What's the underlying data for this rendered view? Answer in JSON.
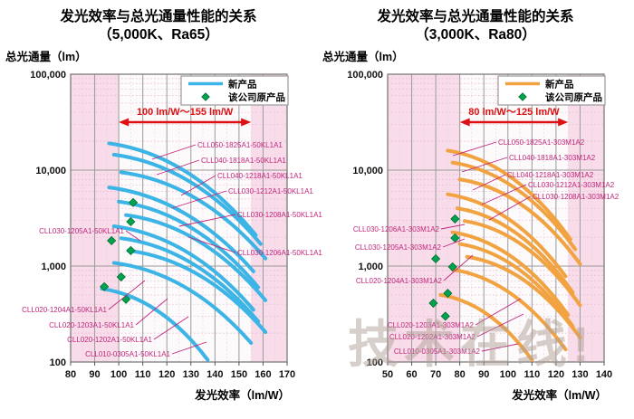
{
  "page": {
    "watermark": "技术在线!"
  },
  "colors": {
    "scatter": "#00a44f",
    "scatter_edge": "#04692e",
    "series_label": "#c0267c",
    "leader": "#c0267c",
    "arrow": "#dd1111",
    "plot_bg": "#f8dce9",
    "band_bg": "#fdfafb",
    "grid_major": "#9a9a9a",
    "grid_minor": "#e2b2ce",
    "grid_minor_v": "#eecadd",
    "border": "#7d7d7d",
    "legend_border": "#9a9a9a",
    "tick_text": "#111111"
  },
  "chart_data": [
    {
      "type": "line",
      "title_line1": "发光效率与总光通量性能的关系",
      "title_line2": "（5,000K、Ra65）",
      "y_axis_label": "总光通量（lm）",
      "x_axis_label": "发光效率（lm/W）",
      "legend": {
        "new_product": "新产品",
        "original_product": "该公司原产品",
        "position": "top-right"
      },
      "range_annotation": "100 lm/W～155 lm/W",
      "highlight_range": [
        100,
        155
      ],
      "x_min": 80,
      "x_max": 170,
      "x_ticks": [
        80,
        90,
        100,
        110,
        120,
        130,
        140,
        150,
        160,
        170
      ],
      "y_ticks": [
        "100,000",
        "10,000",
        "1,000",
        "100"
      ],
      "y_scale": "log",
      "y_min": 100,
      "y_max": 100000,
      "line_color": "#3cb4e5",
      "series": [
        {
          "label": "CLL050-1825A1-50KL1A1",
          "eff": [
            96,
            157
          ],
          "flux": [
            19000,
            2100
          ],
          "label_pos": [
            218,
            163
          ],
          "label_anchor": "start",
          "leader_to": [
            168,
            176
          ]
        },
        {
          "label": "CLL040-1818A1-50KL1A1",
          "eff": [
            98,
            159
          ],
          "flux": [
            14500,
            1700
          ],
          "label_pos": [
            222,
            180
          ],
          "label_anchor": "start",
          "leader_to": [
            173,
            193
          ]
        },
        {
          "label": "CLL040-1218A1-50KL1A1",
          "eff": [
            101,
            161
          ],
          "flux": [
            9500,
            1200
          ],
          "label_pos": [
            240,
            197
          ],
          "label_anchor": "start",
          "leader_to": [
            200,
            216
          ]
        },
        {
          "label": "CLL030-1212A1-50KL1A1",
          "eff": [
            96,
            156
          ],
          "flux": [
            6600,
            880
          ],
          "label_pos": [
            252,
            214
          ],
          "label_anchor": "start",
          "leader_to": [
            190,
            230
          ]
        },
        {
          "label": "CLL030-1208A1-50KL1A1",
          "eff": [
            100,
            158
          ],
          "flux": [
            4700,
            600
          ],
          "label_pos": [
            262,
            240
          ],
          "label_anchor": "start",
          "leader_to": [
            198,
            250
          ]
        },
        {
          "label": "CLL030-1206A1-50KL1A1",
          "eff": [
            103,
            161
          ],
          "flux": [
            3400,
            440
          ],
          "label_pos": [
            262,
            282
          ],
          "label_anchor": "start",
          "leader_to": [
            208,
            262
          ]
        },
        {
          "label": "CLL030-1205A1-50KL1A1",
          "eff": [
            98,
            156
          ],
          "flux": [
            2600,
            350
          ],
          "label_pos": [
            137,
            258
          ],
          "label_anchor": "end",
          "leader_to": [
            155,
            266
          ]
        },
        {
          "label": "CLL020-1204A1-50KL1A1",
          "eff": [
            101,
            158
          ],
          "flux": [
            1950,
            265
          ],
          "label_pos": [
            118,
            345
          ],
          "label_anchor": "end",
          "leader_to": [
            160,
            310
          ]
        },
        {
          "label": "CLL020-1203A1-50KL1A1",
          "eff": [
            104,
            161
          ],
          "flux": [
            1450,
            205
          ],
          "label_pos": [
            148,
            362
          ],
          "label_anchor": "end",
          "leader_to": [
            185,
            330
          ]
        },
        {
          "label": "CLL020-1202A1-50KL1A1",
          "eff": [
            98,
            155
          ],
          "flux": [
            1080,
            158
          ],
          "label_pos": [
            168,
            378
          ],
          "label_anchor": "end",
          "leader_to": [
            208,
            350
          ]
        },
        {
          "label": "CLL010-0305A1-50KL1A1",
          "eff": [
            93,
            137
          ],
          "flux": [
            580,
            105
          ],
          "label_pos": [
            188,
            394
          ],
          "label_anchor": "end",
          "leader_to": [
            228,
            378
          ]
        }
      ],
      "scatter": [
        [
          106,
          4600
        ],
        [
          105,
          2900
        ],
        [
          97,
          1840
        ],
        [
          105,
          1450
        ],
        [
          101,
          770
        ],
        [
          94,
          610
        ],
        [
          103,
          450
        ]
      ]
    },
    {
      "type": "line",
      "title_line1": "发光效率与总光通量性能的关系",
      "title_line2": "（3,000K、Ra80）",
      "y_axis_label": "总光通量（lm）",
      "x_axis_label": "发光效率（lm/W）",
      "legend": {
        "new_product": "新产品",
        "original_product": "该公司原产品",
        "position": "top-right"
      },
      "range_annotation": "80 lm/W～125 lm/W",
      "highlight_range": [
        80,
        125
      ],
      "x_min": 50,
      "x_max": 140,
      "x_ticks": [
        50,
        60,
        70,
        80,
        90,
        100,
        110,
        120,
        130,
        140
      ],
      "y_ticks": [
        "100,000",
        "10,000",
        "1,000",
        "100"
      ],
      "y_scale": "log",
      "y_min": 100,
      "y_max": 100000,
      "line_color": "#f2a341",
      "series": [
        {
          "label": "CLL050-1825A1-303M1A2",
          "eff": [
            75,
            126
          ],
          "flux": [
            16000,
            1900
          ],
          "label_pos": [
            200,
            160
          ],
          "label_anchor": "start",
          "leader_to": [
            150,
            172
          ]
        },
        {
          "label": "CLL040-1818A1-303M1A2",
          "eff": [
            77,
            128
          ],
          "flux": [
            12000,
            1500
          ],
          "label_pos": [
            212,
            177
          ],
          "label_anchor": "start",
          "leader_to": [
            160,
            190
          ]
        },
        {
          "label": "CLL040-1218A1-303M1A2",
          "eff": [
            80,
            130
          ],
          "flux": [
            8000,
            1050
          ],
          "label_pos": [
            210,
            196
          ],
          "label_anchor": "start",
          "leader_to": [
            172,
            210
          ]
        },
        {
          "label": "CLL030-1212A1-303M1A2",
          "eff": [
            75,
            124
          ],
          "flux": [
            5600,
            780
          ],
          "label_pos": [
            233,
            207
          ],
          "label_anchor": "start",
          "leader_to": [
            182,
            226
          ]
        },
        {
          "label": "CLL030-1208A1-303M1A2",
          "eff": [
            79,
            127
          ],
          "flux": [
            4000,
            530
          ],
          "label_pos": [
            238,
            220
          ],
          "label_anchor": "start",
          "leader_to": [
            190,
            243
          ]
        },
        {
          "label": "CLL030-1206A1-303M1A2",
          "eff": [
            82,
            130
          ],
          "flux": [
            2950,
            390
          ],
          "label_pos": [
            135,
            256
          ],
          "label_anchor": "end",
          "leader_to": [
            163,
            248
          ]
        },
        {
          "label": "CLL030-1205A1-303M1A2",
          "eff": [
            77,
            125
          ],
          "flux": [
            2250,
            310
          ],
          "label_pos": [
            137,
            276
          ],
          "label_anchor": "end",
          "leader_to": [
            163,
            264
          ]
        },
        {
          "label": "CLL020-1204A1-303M1A2",
          "eff": [
            80,
            127
          ],
          "flux": [
            1700,
            235
          ],
          "label_pos": [
            138,
            313
          ],
          "label_anchor": "end",
          "leader_to": [
            172,
            282
          ]
        },
        {
          "label": "CLL020-1203A1-303M1A2",
          "eff": [
            83,
            130
          ],
          "flux": [
            1250,
            180
          ],
          "label_pos": [
            173,
            362
          ],
          "label_anchor": "end",
          "leader_to": [
            225,
            330
          ]
        },
        {
          "label": "CLL020-1202A1-303M1A2",
          "eff": [
            77,
            124
          ],
          "flux": [
            920,
            135
          ],
          "label_pos": [
            175,
            375
          ],
          "label_anchor": "end",
          "leader_to": [
            228,
            347
          ]
        },
        {
          "label": "CLL010-0305A1-303M1A2",
          "eff": [
            72,
            110
          ],
          "flux": [
            500,
            105
          ],
          "label_pos": [
            180,
            391
          ],
          "label_anchor": "end",
          "leader_to": [
            222,
            380
          ]
        }
      ],
      "scatter": [
        [
          78,
          3100
        ],
        [
          78,
          1960
        ],
        [
          70,
          1190
        ],
        [
          77,
          980
        ],
        [
          75,
          520
        ],
        [
          69,
          410
        ],
        [
          74,
          300
        ]
      ]
    }
  ]
}
